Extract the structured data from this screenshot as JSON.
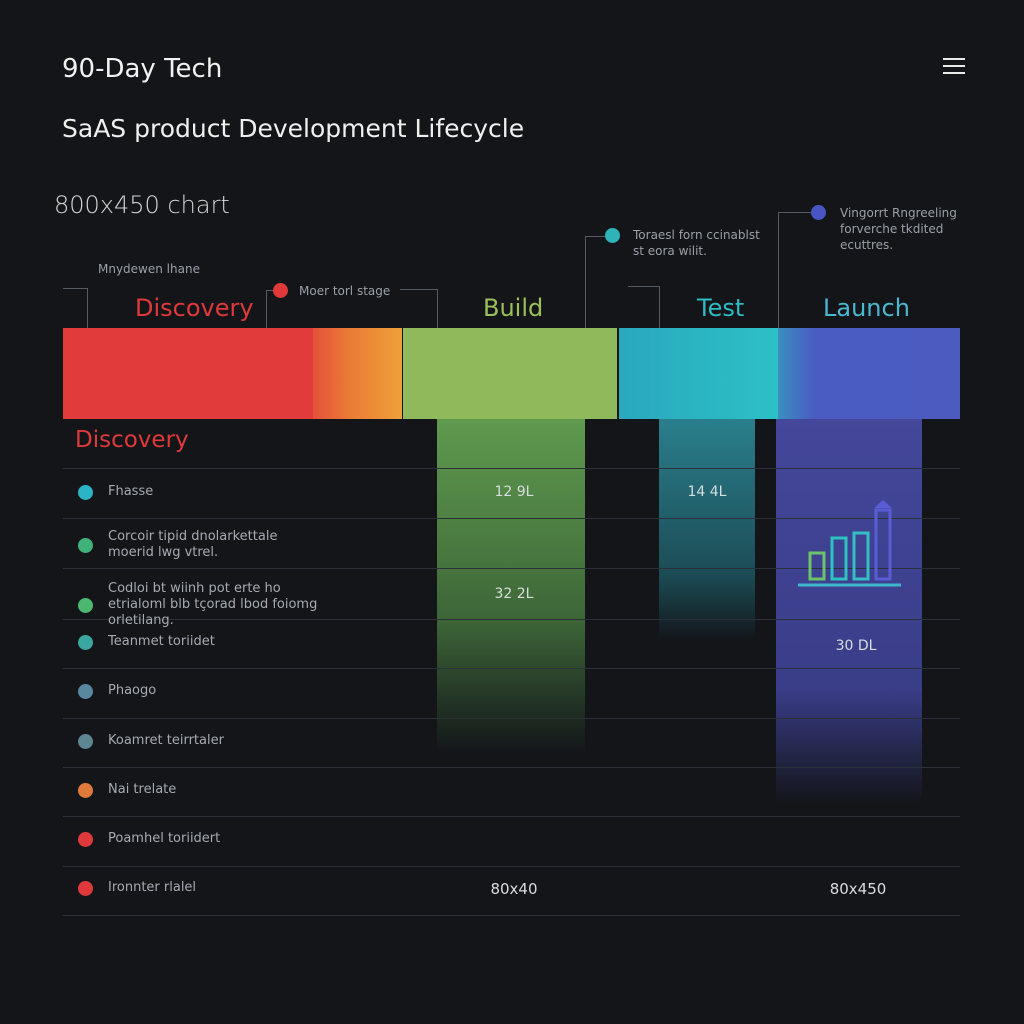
{
  "header": {
    "title": "90-Day Tech",
    "subtitle": "SaAS product Development Lifecycle",
    "size_label": "800x450 chart",
    "menu_icon": "hamburger-menu-icon"
  },
  "annotations": [
    {
      "text": "Mnydewen lhane",
      "color": ""
    },
    {
      "text": "Moer torl stage",
      "color": "#e0393b"
    },
    {
      "text": "Toraesl forn ccinablst st eora wilit.",
      "color": "#2eb3b8"
    },
    {
      "text": "Vingorrt Rngreeling forverche tkdited ecuttres.",
      "color": "#4a55c4"
    }
  ],
  "phases": [
    {
      "label": "Discovery",
      "color": "#e0393b"
    },
    {
      "label": "Build",
      "color": "#9ac05a"
    },
    {
      "label": "Test",
      "color": "#2bbcc4"
    },
    {
      "label": "Launch",
      "color": "#4bb7d0"
    }
  ],
  "section_title": "Discovery",
  "rows": [
    {
      "label": "Fhasse",
      "color": "#2ab4c6"
    },
    {
      "label": "Corcoir tipid dnolarkettale moerid lwg vtrel.",
      "color": "#3fb27a"
    },
    {
      "label": "Codloi bt wiinh pot erte ho etrialoml blb tçorad lbod foiomg orletilang.",
      "color": "#4cb86f"
    },
    {
      "label": "Teanmet toriidet",
      "color": "#3aa6a0"
    },
    {
      "label": "Phaogo",
      "color": "#5a87a0"
    },
    {
      "label": "Koamret teirrtaler",
      "color": "#5d8592"
    },
    {
      "label": "Nai trelate",
      "color": "#e07a3a"
    },
    {
      "label": "Poamhel toriidert",
      "color": "#e0393b"
    },
    {
      "label": "Ironnter rlalel",
      "color": "#e0393b"
    }
  ],
  "values": {
    "build_1": "12 9L",
    "build_2": "32 2L",
    "test_1": "14 4L",
    "launch_1": "30 DL",
    "build_footer": "80x40",
    "launch_footer": "80x450"
  },
  "launch_icon": "bar-chart-growth-icon"
}
